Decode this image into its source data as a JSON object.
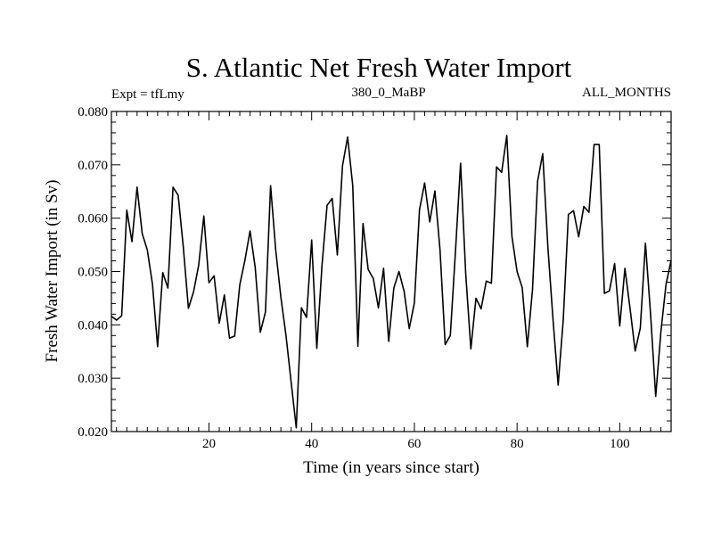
{
  "chart_data": {
    "type": "line",
    "title": "S. Atlantic Net Fresh Water Import",
    "subtitle_left": "Expt = tfLmy",
    "subtitle_center": "380_0_MaBP",
    "subtitle_right": "ALL_MONTHS",
    "xlabel": "Time (in years since start)",
    "ylabel": "Fresh Water Import (in Sv)",
    "xlim": [
      1,
      110
    ],
    "ylim": [
      0.02,
      0.08
    ],
    "x_ticks": [
      20,
      40,
      60,
      80,
      100
    ],
    "x_tick_labels": [
      "20",
      "40",
      "60",
      "80",
      "100"
    ],
    "y_ticks": [
      0.02,
      0.03,
      0.04,
      0.05,
      0.06,
      0.07,
      0.08
    ],
    "y_tick_labels": [
      "0.020",
      "0.030",
      "0.040",
      "0.050",
      "0.060",
      "0.070",
      "0.080"
    ],
    "series": [
      {
        "name": "S. Atlantic Net Fresh Water Import",
        "color": "#000000",
        "x": [
          1,
          2,
          3,
          4,
          5,
          6,
          7,
          8,
          9,
          10,
          11,
          12,
          13,
          14,
          15,
          16,
          17,
          18,
          19,
          20,
          21,
          22,
          23,
          24,
          25,
          26,
          27,
          28,
          29,
          30,
          31,
          32,
          33,
          34,
          35,
          36,
          37,
          38,
          39,
          40,
          41,
          42,
          43,
          44,
          45,
          46,
          47,
          48,
          49,
          50,
          51,
          52,
          53,
          54,
          55,
          56,
          57,
          58,
          59,
          60,
          61,
          62,
          63,
          64,
          65,
          66,
          67,
          68,
          69,
          70,
          71,
          72,
          73,
          74,
          75,
          76,
          77,
          78,
          79,
          80,
          81,
          82,
          83,
          84,
          85,
          86,
          87,
          88,
          89,
          90,
          91,
          92,
          93,
          94,
          95,
          96,
          97,
          98,
          99,
          100,
          101,
          102,
          103,
          104,
          105,
          106,
          107,
          108,
          109,
          110
        ],
        "values": [
          0.0416,
          0.0409,
          0.0417,
          0.0615,
          0.0556,
          0.0658,
          0.0571,
          0.054,
          0.0476,
          0.0359,
          0.0498,
          0.0469,
          0.0658,
          0.0643,
          0.0546,
          0.0431,
          0.0462,
          0.0512,
          0.0604,
          0.0479,
          0.0492,
          0.0403,
          0.0456,
          0.0375,
          0.0379,
          0.0475,
          0.0521,
          0.0576,
          0.0508,
          0.0386,
          0.0424,
          0.0661,
          0.054,
          0.0452,
          0.038,
          0.0293,
          0.0207,
          0.0432,
          0.0414,
          0.0559,
          0.0356,
          0.051,
          0.0624,
          0.0637,
          0.0531,
          0.0698,
          0.0752,
          0.0661,
          0.036,
          0.059,
          0.0504,
          0.0487,
          0.0432,
          0.0506,
          0.0369,
          0.0469,
          0.05,
          0.0463,
          0.0393,
          0.0441,
          0.0616,
          0.0666,
          0.0593,
          0.0651,
          0.054,
          0.0363,
          0.038,
          0.0537,
          0.0703,
          0.0496,
          0.0355,
          0.045,
          0.043,
          0.0482,
          0.0478,
          0.0696,
          0.0686,
          0.0755,
          0.0566,
          0.05,
          0.047,
          0.0359,
          0.0465,
          0.0669,
          0.0721,
          0.0546,
          0.041,
          0.0287,
          0.041,
          0.0607,
          0.0614,
          0.0565,
          0.0622,
          0.0611,
          0.0738,
          0.0738,
          0.0459,
          0.0464,
          0.0515,
          0.0398,
          0.0506,
          0.0431,
          0.0351,
          0.0394,
          0.0553,
          0.042,
          0.0266,
          0.0386,
          0.0475,
          0.0521
        ]
      }
    ]
  }
}
